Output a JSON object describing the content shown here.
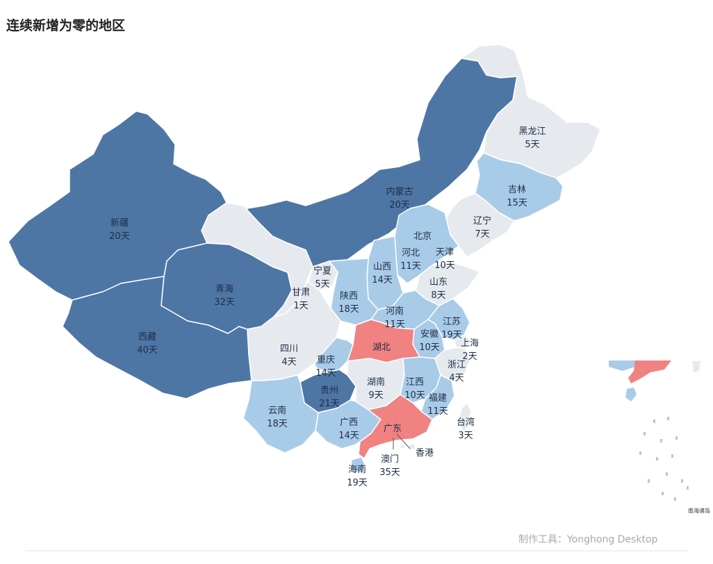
{
  "title": "连续新增为零的地区",
  "footer": "制作工具：Yonghong Desktop",
  "inset_label": "南海诸岛",
  "colors": {
    "d1": "#4e76a5",
    "d2": "#a8cbe8",
    "d3": "#e6eaef",
    "hl": "#f08282",
    "text": "#1f2d44"
  },
  "regions": [
    {
      "name": "新疆",
      "days": "20天",
      "cls": "d1"
    },
    {
      "name": "西藏",
      "days": "40天",
      "cls": "d1"
    },
    {
      "name": "青海",
      "days": "32天",
      "cls": "d1"
    },
    {
      "name": "内蒙古",
      "days": "20天",
      "cls": "d1"
    },
    {
      "name": "黑龙江",
      "days": "5天",
      "cls": "d3"
    },
    {
      "name": "吉林",
      "days": "15天",
      "cls": "d2"
    },
    {
      "name": "辽宁",
      "days": "7天",
      "cls": "d3"
    },
    {
      "name": "北京",
      "days": "",
      "cls": "hl"
    },
    {
      "name": "天津",
      "days": "10天",
      "cls": "d3"
    },
    {
      "name": "河北",
      "days": "11天",
      "cls": "d2"
    },
    {
      "name": "山西",
      "days": "14天",
      "cls": "d2"
    },
    {
      "name": "山东",
      "days": "8天",
      "cls": "d3"
    },
    {
      "name": "宁夏",
      "days": "5天",
      "cls": "d3"
    },
    {
      "name": "甘肃",
      "days": "1天",
      "cls": "d3"
    },
    {
      "name": "陕西",
      "days": "18天",
      "cls": "d2"
    },
    {
      "name": "河南",
      "days": "11天",
      "cls": "d2"
    },
    {
      "name": "江苏",
      "days": "19天",
      "cls": "d2"
    },
    {
      "name": "安徽",
      "days": "10天",
      "cls": "d2"
    },
    {
      "name": "上海",
      "days": "2天",
      "cls": "d3"
    },
    {
      "name": "湖北",
      "days": "",
      "cls": "hl"
    },
    {
      "name": "四川",
      "days": "4天",
      "cls": "d3"
    },
    {
      "name": "重庆",
      "days": "14天",
      "cls": "d2"
    },
    {
      "name": "浙江",
      "days": "4天",
      "cls": "d3"
    },
    {
      "name": "贵州",
      "days": "21天",
      "cls": "d1"
    },
    {
      "name": "湖南",
      "days": "9天",
      "cls": "d3"
    },
    {
      "name": "江西",
      "days": "10天",
      "cls": "d2"
    },
    {
      "name": "福建",
      "days": "11天",
      "cls": "d2"
    },
    {
      "name": "云南",
      "days": "18天",
      "cls": "d2"
    },
    {
      "name": "广西",
      "days": "14天",
      "cls": "d2"
    },
    {
      "name": "广东",
      "days": "",
      "cls": "hl"
    },
    {
      "name": "台湾",
      "days": "3天",
      "cls": "d3"
    },
    {
      "name": "香港",
      "days": "",
      "cls": "d3"
    },
    {
      "name": "澳门",
      "days": "35天",
      "cls": "d3"
    },
    {
      "name": "海南",
      "days": "19天",
      "cls": "d2"
    }
  ]
}
